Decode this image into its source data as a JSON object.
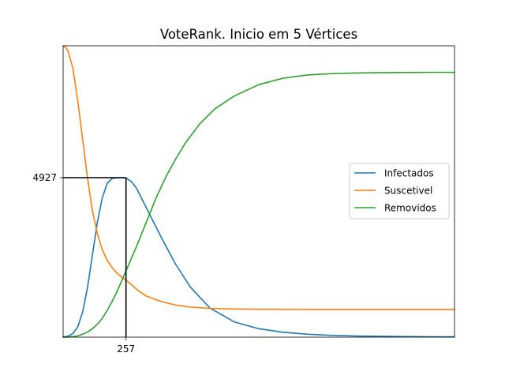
{
  "chart_data": {
    "type": "line",
    "title": "VoteRank. Inicio em 5 Vértices",
    "xlabel": "",
    "ylabel": "",
    "x_range": [
      0,
      1600
    ],
    "y_range": [
      0,
      9000
    ],
    "x_ticks": [
      257
    ],
    "x_tick_labels": [
      "257"
    ],
    "y_ticks": [
      4927
    ],
    "y_tick_labels": [
      "4927"
    ],
    "peak_marker": {
      "x": 257,
      "y": 4927
    },
    "legend_position": "center right",
    "grid": false,
    "series": [
      {
        "name": "Infectados",
        "color": "#1f77b4",
        "x": [
          0,
          20,
          40,
          60,
          80,
          100,
          120,
          140,
          160,
          180,
          200,
          220,
          240,
          257,
          280,
          300,
          340,
          400,
          460,
          520,
          600,
          700,
          800,
          900,
          1000,
          1100,
          1200,
          1300,
          1400,
          1500,
          1600
        ],
        "y": [
          5,
          30,
          110,
          320,
          780,
          1550,
          2550,
          3550,
          4300,
          4750,
          4900,
          4925,
          4927,
          4920,
          4800,
          4600,
          4000,
          3100,
          2250,
          1550,
          900,
          470,
          260,
          150,
          90,
          55,
          35,
          25,
          18,
          12,
          10
        ]
      },
      {
        "name": "Suscetivel",
        "color": "#ff7f0e",
        "x": [
          0,
          10,
          20,
          40,
          60,
          80,
          100,
          120,
          140,
          160,
          180,
          200,
          220,
          240,
          257,
          280,
          300,
          340,
          400,
          460,
          520,
          600,
          700,
          800,
          900,
          1000,
          1200,
          1400,
          1600
        ],
        "y": [
          9000,
          8950,
          8850,
          8300,
          7300,
          6100,
          4900,
          3900,
          3200,
          2700,
          2380,
          2150,
          1980,
          1850,
          1760,
          1620,
          1480,
          1270,
          1100,
          990,
          930,
          890,
          870,
          862,
          858,
          856,
          855,
          855,
          855
        ]
      },
      {
        "name": "Removidos",
        "color": "#2ca02c",
        "x": [
          0,
          20,
          40,
          60,
          80,
          100,
          120,
          140,
          160,
          180,
          200,
          220,
          240,
          257,
          280,
          300,
          340,
          380,
          420,
          460,
          500,
          560,
          620,
          700,
          800,
          900,
          1000,
          1100,
          1200,
          1300,
          1400,
          1500,
          1600
        ],
        "y": [
          0,
          3,
          15,
          40,
          90,
          160,
          260,
          400,
          580,
          820,
          1100,
          1400,
          1750,
          2050,
          2450,
          2800,
          3550,
          4300,
          4950,
          5500,
          6000,
          6600,
          7050,
          7450,
          7800,
          8000,
          8100,
          8140,
          8160,
          8170,
          8175,
          8180,
          8180
        ]
      }
    ]
  }
}
